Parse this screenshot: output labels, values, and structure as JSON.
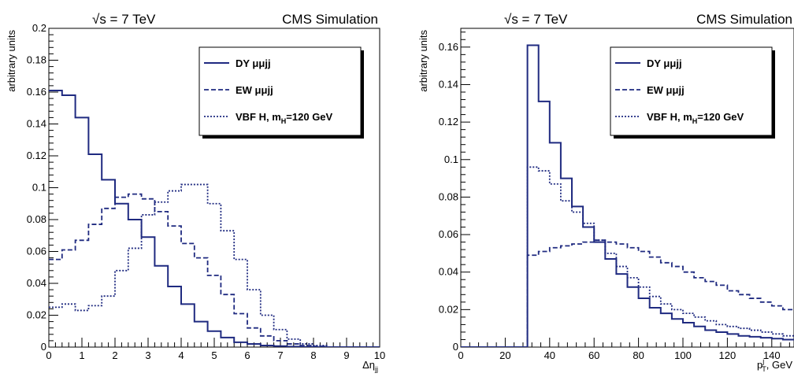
{
  "chart_data": [
    {
      "type": "line",
      "style": "step-histogram",
      "header_left": "√s = 7 TeV",
      "header_right": "CMS Simulation",
      "xlabel": "Δη",
      "xlabel_sub": "jj",
      "ylabel": "arbitrary units",
      "xlim": [
        0,
        10
      ],
      "ylim": [
        0,
        0.2
      ],
      "x_ticks": [
        "0",
        "1",
        "2",
        "3",
        "4",
        "5",
        "6",
        "7",
        "8",
        "9",
        "10"
      ],
      "y_ticks": [
        "0",
        "0.02",
        "0.04",
        "0.06",
        "0.08",
        "0.1",
        "0.12",
        "0.14",
        "0.16",
        "0.18",
        "0.2"
      ],
      "bin_edges": [
        0,
        0.4,
        0.8,
        1.2,
        1.6,
        2.0,
        2.4,
        2.8,
        3.2,
        3.6,
        4.0,
        4.4,
        4.8,
        5.2,
        5.6,
        6.0,
        6.4,
        6.8,
        7.2,
        7.6,
        8.0,
        8.4,
        8.8,
        9.2,
        9.6,
        10.0
      ],
      "legend_position": "top-right",
      "series": [
        {
          "name": "DY μμjj",
          "line_style": "solid",
          "color": "#1f2a80",
          "values": [
            0.161,
            0.158,
            0.144,
            0.121,
            0.105,
            0.09,
            0.08,
            0.069,
            0.051,
            0.038,
            0.027,
            0.016,
            0.01,
            0.006,
            0.003,
            0.002,
            0.001,
            0.0006,
            0.0003,
            0.0001,
            0,
            0,
            0,
            0,
            0
          ]
        },
        {
          "name": "EW μμjj",
          "line_style": "dashed",
          "color": "#1f2a80",
          "values": [
            0.055,
            0.061,
            0.067,
            0.077,
            0.087,
            0.094,
            0.096,
            0.093,
            0.085,
            0.076,
            0.065,
            0.056,
            0.045,
            0.033,
            0.021,
            0.012,
            0.007,
            0.004,
            0.002,
            0.001,
            0.0005,
            0,
            0,
            0,
            0
          ]
        },
        {
          "name": "VBF H, m",
          "name_sub": "H",
          "name_tail": "=120 GeV",
          "line_style": "dotted",
          "color": "#1f2a80",
          "values": [
            0.025,
            0.027,
            0.023,
            0.026,
            0.032,
            0.048,
            0.062,
            0.083,
            0.091,
            0.098,
            0.102,
            0.102,
            0.09,
            0.073,
            0.055,
            0.036,
            0.02,
            0.011,
            0.005,
            0.002,
            0.001,
            0,
            0,
            0,
            0
          ]
        }
      ]
    },
    {
      "type": "line",
      "style": "step-histogram",
      "header_left": "√s = 7 TeV",
      "header_right": "CMS Simulation",
      "xlabel": "p",
      "xlabel_sub": "T",
      "xlabel_sup": "j",
      "xlabel_tail": ", GeV",
      "ylabel": "arbitrary units",
      "xlim": [
        0,
        150
      ],
      "ylim": [
        0,
        0.17
      ],
      "x_ticks": [
        "0",
        "20",
        "40",
        "60",
        "80",
        "100",
        "120",
        "140"
      ],
      "y_ticks": [
        "0",
        "0.02",
        "0.04",
        "0.06",
        "0.08",
        "0.1",
        "0.12",
        "0.14",
        "0.16"
      ],
      "bin_edges": [
        0,
        5,
        10,
        15,
        20,
        25,
        30,
        35,
        40,
        45,
        50,
        55,
        60,
        65,
        70,
        75,
        80,
        85,
        90,
        95,
        100,
        105,
        110,
        115,
        120,
        125,
        130,
        135,
        140,
        145,
        150
      ],
      "legend_position": "top-right",
      "series": [
        {
          "name": "DY μμjj",
          "line_style": "solid",
          "color": "#1f2a80",
          "values": [
            0,
            0,
            0,
            0,
            0,
            0,
            0.161,
            0.131,
            0.109,
            0.09,
            0.075,
            0.064,
            0.056,
            0.047,
            0.039,
            0.032,
            0.026,
            0.021,
            0.018,
            0.015,
            0.013,
            0.011,
            0.009,
            0.008,
            0.007,
            0.006,
            0.0055,
            0.005,
            0.0045,
            0.004
          ]
        },
        {
          "name": "EW μμjj",
          "line_style": "dashed",
          "color": "#1f2a80",
          "values": [
            0,
            0,
            0,
            0,
            0,
            0,
            0.049,
            0.051,
            0.053,
            0.054,
            0.055,
            0.056,
            0.057,
            0.056,
            0.055,
            0.053,
            0.051,
            0.048,
            0.045,
            0.043,
            0.04,
            0.037,
            0.035,
            0.033,
            0.03,
            0.028,
            0.026,
            0.024,
            0.022,
            0.02
          ]
        },
        {
          "name": "VBF H, m",
          "name_sub": "H",
          "name_tail": "=120 GeV",
          "line_style": "dotted",
          "color": "#1f2a80",
          "values": [
            0,
            0,
            0,
            0,
            0,
            0,
            0.096,
            0.094,
            0.087,
            0.078,
            0.072,
            0.066,
            0.057,
            0.05,
            0.043,
            0.037,
            0.032,
            0.027,
            0.023,
            0.02,
            0.018,
            0.016,
            0.014,
            0.012,
            0.011,
            0.01,
            0.009,
            0.008,
            0.007,
            0.006
          ]
        }
      ]
    }
  ]
}
